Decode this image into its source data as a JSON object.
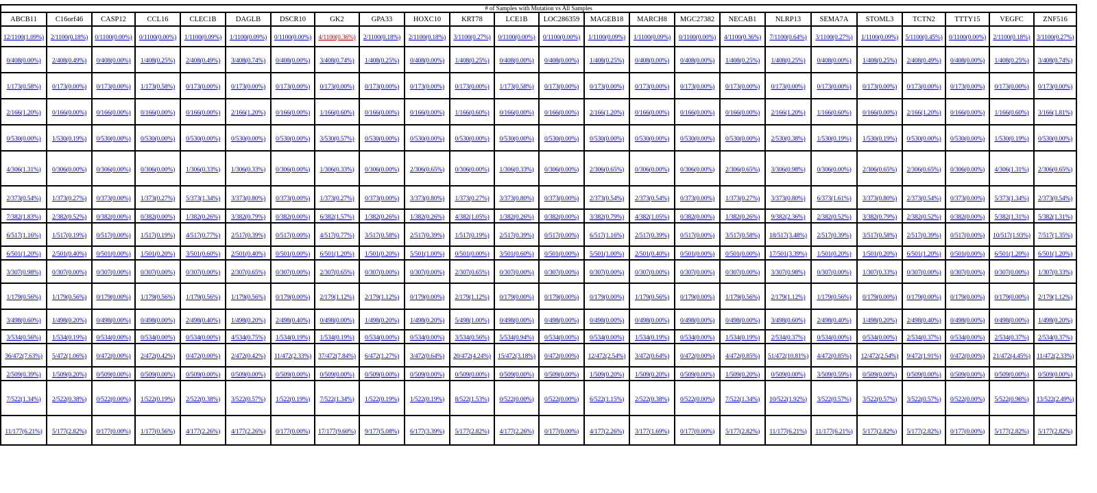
{
  "table": {
    "title": "# of Samples with Mutation vs All Samples",
    "columns": [
      "ABCB11",
      "C16orf46",
      "CASP12",
      "CCL16",
      "CLEC1B",
      "DAGLB",
      "DSCR10",
      "GK2",
      "GPA33",
      "HOXC10",
      "KRT78",
      "LCE1B",
      "LOC286359",
      "MAGEB18",
      "MARCH8",
      "MGC27382",
      "NECAB1",
      "NLRP13",
      "SEMA7A",
      "STOML3",
      "TCTN2",
      "TTTY15",
      "VEGFC",
      "ZNF516"
    ],
    "rows": [
      [
        "12/1100(1.09%)",
        "2/1100(0.18%)",
        "0/1100(0.00%)",
        "0/1100(0.00%)",
        "1/1100(0.09%)",
        "1/1100(0.09%)",
        "0/1100(0.00%)",
        "4/1100(0.36%)",
        "2/1100(0.18%)",
        "2/1100(0.18%)",
        "3/1100(0.27%)",
        "0/1100(0.00%)",
        "0/1100(0.00%)",
        "1/1100(0.09%)",
        "1/1100(0.09%)",
        "0/1100(0.00%)",
        "4/1100(0.36%)",
        "7/1100(0.64%)",
        "3/1100(0.27%)",
        "1/1100(0.09%)",
        "5/1100(0.45%)",
        "0/1100(0.00%)",
        "2/1100(0.18%)",
        "3/1100(0.27%)"
      ],
      [
        "0/408(0.00%)",
        "2/408(0.49%)",
        "0/408(0.00%)",
        "1/408(0.25%)",
        "2/408(0.49%)",
        "3/408(0.74%)",
        "0/408(0.00%)",
        "3/408(0.74%)",
        "1/408(0.25%)",
        "0/408(0.00%)",
        "1/408(0.25%)",
        "0/408(0.00%)",
        "0/408(0.00%)",
        "1/408(0.25%)",
        "0/408(0.00%)",
        "0/408(0.00%)",
        "1/408(0.25%)",
        "1/408(0.25%)",
        "0/408(0.00%)",
        "1/408(0.25%)",
        "2/408(0.49%)",
        "0/408(0.00%)",
        "1/408(0.25%)",
        "3/408(0.74%)"
      ],
      [
        "1/173(0.58%)",
        "0/173(0.00%)",
        "0/173(0.00%)",
        "1/173(0.58%)",
        "0/173(0.00%)",
        "0/173(0.00%)",
        "0/173(0.00%)",
        "0/173(0.00%)",
        "0/173(0.00%)",
        "0/173(0.00%)",
        "0/173(0.00%)",
        "1/173(0.58%)",
        "0/173(0.00%)",
        "0/173(0.00%)",
        "0/173(0.00%)",
        "0/173(0.00%)",
        "0/173(0.00%)",
        "0/173(0.00%)",
        "0/173(0.00%)",
        "0/173(0.00%)",
        "0/173(0.00%)",
        "0/173(0.00%)",
        "0/173(0.00%)",
        "0/173(0.00%)"
      ],
      [
        "2/166(1.20%)",
        "0/166(0.00%)",
        "0/166(0.00%)",
        "0/166(0.00%)",
        "0/166(0.00%)",
        "2/166(1.20%)",
        "0/166(0.00%)",
        "1/166(0.60%)",
        "0/166(0.00%)",
        "0/166(0.00%)",
        "1/166(0.60%)",
        "0/166(0.00%)",
        "0/166(0.00%)",
        "2/166(1.20%)",
        "0/166(0.00%)",
        "0/166(0.00%)",
        "0/166(0.00%)",
        "2/166(1.20%)",
        "1/166(0.60%)",
        "0/166(0.00%)",
        "2/166(1.20%)",
        "0/166(0.00%)",
        "1/166(0.60%)",
        "3/166(1.81%)"
      ],
      [
        "0/530(0.00%)",
        "1/530(0.19%)",
        "0/530(0.00%)",
        "0/530(0.00%)",
        "0/530(0.00%)",
        "0/530(0.00%)",
        "0/530(0.00%)",
        "3/530(0.57%)",
        "0/530(0.00%)",
        "0/530(0.00%)",
        "0/530(0.00%)",
        "0/530(0.00%)",
        "0/530(0.00%)",
        "0/530(0.00%)",
        "0/530(0.00%)",
        "0/530(0.00%)",
        "0/530(0.00%)",
        "2/530(0.38%)",
        "1/530(0.19%)",
        "1/530(0.19%)",
        "0/530(0.00%)",
        "0/530(0.00%)",
        "1/530(0.19%)",
        "0/530(0.00%)"
      ],
      [
        "4/306(1.31%)",
        "0/306(0.00%)",
        "0/306(0.00%)",
        "0/306(0.00%)",
        "1/306(0.33%)",
        "1/306(0.33%)",
        "0/306(0.00%)",
        "1/306(0.33%)",
        "0/306(0.00%)",
        "2/306(0.65%)",
        "0/306(0.00%)",
        "1/306(0.33%)",
        "0/306(0.00%)",
        "2/306(0.65%)",
        "0/306(0.00%)",
        "0/306(0.00%)",
        "2/306(0.65%)",
        "3/306(0.98%)",
        "0/306(0.00%)",
        "2/306(0.65%)",
        "2/306(0.65%)",
        "0/306(0.00%)",
        "4/306(1.31%)",
        "2/306(0.65%)"
      ],
      [
        "2/373(0.54%)",
        "1/373(0.27%)",
        "0/373(0.00%)",
        "1/373(0.27%)",
        "5/373(1.34%)",
        "3/373(0.80%)",
        "0/373(0.00%)",
        "1/373(0.27%)",
        "0/373(0.00%)",
        "3/373(0.80%)",
        "1/373(0.27%)",
        "3/373(0.80%)",
        "0/373(0.00%)",
        "2/373(0.54%)",
        "2/373(0.54%)",
        "0/373(0.00%)",
        "1/373(0.27%)",
        "3/373(0.80%)",
        "6/373(1.61%)",
        "3/373(0.80%)",
        "2/373(0.54%)",
        "0/373(0.00%)",
        "5/373(1.34%)",
        "2/373(0.54%)"
      ],
      [
        "7/382(1.83%)",
        "2/382(0.52%)",
        "0/382(0.00%)",
        "0/382(0.00%)",
        "1/382(0.26%)",
        "3/382(0.79%)",
        "0/382(0.00%)",
        "6/382(1.57%)",
        "1/382(0.26%)",
        "1/382(0.26%)",
        "4/382(1.05%)",
        "1/382(0.26%)",
        "0/382(0.00%)",
        "3/382(0.79%)",
        "4/382(1.05%)",
        "0/382(0.00%)",
        "1/382(0.26%)",
        "9/382(2.36%)",
        "2/382(0.52%)",
        "3/382(0.79%)",
        "2/382(0.52%)",
        "0/382(0.00%)",
        "5/382(1.31%)",
        "5/382(1.31%)"
      ],
      [
        "6/517(1.16%)",
        "1/517(0.19%)",
        "0/517(0.00%)",
        "1/517(0.19%)",
        "4/517(0.77%)",
        "2/517(0.39%)",
        "0/517(0.00%)",
        "4/517(0.77%)",
        "3/517(0.58%)",
        "2/517(0.39%)",
        "1/517(0.19%)",
        "2/517(0.39%)",
        "0/517(0.00%)",
        "6/517(1.16%)",
        "2/517(0.39%)",
        "0/517(0.00%)",
        "3/517(0.58%)",
        "18/517(3.48%)",
        "2/517(0.39%)",
        "3/517(0.58%)",
        "2/517(0.39%)",
        "0/517(0.00%)",
        "10/517(1.93%)",
        "7/517(1.35%)"
      ],
      [
        "6/501(1.20%)",
        "2/501(0.40%)",
        "0/501(0.00%)",
        "1/501(0.20%)",
        "3/501(0.60%)",
        "2/501(0.40%)",
        "0/501(0.00%)",
        "6/501(1.20%)",
        "1/501(0.20%)",
        "5/501(1.00%)",
        "0/501(0.00%)",
        "3/501(0.60%)",
        "0/501(0.00%)",
        "5/501(1.00%)",
        "2/501(0.40%)",
        "0/501(0.00%)",
        "0/501(0.00%)",
        "17/501(3.39%)",
        "1/501(0.20%)",
        "1/501(0.20%)",
        "6/501(1.20%)",
        "0/501(0.00%)",
        "6/501(1.20%)",
        "6/501(1.20%)"
      ],
      [
        "3/307(0.98%)",
        "0/307(0.00%)",
        "0/307(0.00%)",
        "0/307(0.00%)",
        "0/307(0.00%)",
        "2/307(0.65%)",
        "0/307(0.00%)",
        "2/307(0.65%)",
        "0/307(0.00%)",
        "0/307(0.00%)",
        "2/307(0.65%)",
        "0/307(0.00%)",
        "0/307(0.00%)",
        "0/307(0.00%)",
        "0/307(0.00%)",
        "0/307(0.00%)",
        "0/307(0.00%)",
        "3/307(0.98%)",
        "0/307(0.00%)",
        "1/307(0.33%)",
        "0/307(0.00%)",
        "0/307(0.00%)",
        "0/307(0.00%)",
        "1/307(0.33%)"
      ],
      [
        "1/179(0.56%)",
        "1/179(0.56%)",
        "0/179(0.00%)",
        "1/179(0.56%)",
        "1/179(0.56%)",
        "1/179(0.56%)",
        "0/179(0.00%)",
        "2/179(1.12%)",
        "2/179(1.12%)",
        "0/179(0.00%)",
        "2/179(1.12%)",
        "0/179(0.00%)",
        "0/179(0.00%)",
        "0/179(0.00%)",
        "1/179(0.56%)",
        "0/179(0.00%)",
        "1/179(0.56%)",
        "2/179(1.12%)",
        "1/179(0.56%)",
        "0/179(0.00%)",
        "0/179(0.00%)",
        "0/179(0.00%)",
        "0/179(0.00%)",
        "2/179(1.12%)"
      ],
      [
        "3/498(0.60%)",
        "1/498(0.20%)",
        "0/498(0.00%)",
        "0/498(0.00%)",
        "2/498(0.40%)",
        "1/498(0.20%)",
        "2/498(0.40%)",
        "0/498(0.00%)",
        "1/498(0.20%)",
        "1/498(0.20%)",
        "5/498(1.00%)",
        "0/498(0.00%)",
        "0/498(0.00%)",
        "0/498(0.00%)",
        "0/498(0.00%)",
        "0/498(0.00%)",
        "0/498(0.00%)",
        "3/498(0.60%)",
        "2/498(0.40%)",
        "1/498(0.20%)",
        "2/498(0.40%)",
        "0/498(0.00%)",
        "0/498(0.00%)",
        "1/498(0.20%)"
      ],
      [
        "3/534(0.56%)",
        "1/534(0.19%)",
        "0/534(0.00%)",
        "0/534(0.00%)",
        "0/534(0.00%)",
        "4/534(0.75%)",
        "1/534(0.19%)",
        "1/534(0.19%)",
        "0/534(0.00%)",
        "0/534(0.00%)",
        "3/534(0.56%)",
        "5/534(0.94%)",
        "0/534(0.00%)",
        "0/534(0.00%)",
        "1/534(0.19%)",
        "0/534(0.00%)",
        "1/534(0.19%)",
        "2/534(0.37%)",
        "0/534(0.00%)",
        "0/534(0.00%)",
        "2/534(0.37%)",
        "0/534(0.00%)",
        "2/534(0.37%)",
        "2/534(0.37%)"
      ],
      [
        "36/472(7.63%)",
        "5/472(1.06%)",
        "0/472(0.00%)",
        "2/472(0.42%)",
        "0/472(0.00%)",
        "2/472(0.42%)",
        "11/472(2.33%)",
        "37/472(7.84%)",
        "6/472(1.27%)",
        "3/472(0.64%)",
        "20/472(4.24%)",
        "15/472(3.18%)",
        "0/472(0.00%)",
        "12/472(2.54%)",
        "3/472(0.64%)",
        "0/472(0.00%)",
        "4/472(0.85%)",
        "51/472(10.81%)",
        "4/472(0.85%)",
        "12/472(2.54%)",
        "9/472(1.91%)",
        "0/472(0.00%)",
        "21/472(4.45%)",
        "11/472(2.33%)"
      ],
      [
        "2/509(0.39%)",
        "1/509(0.20%)",
        "0/509(0.00%)",
        "0/509(0.00%)",
        "0/509(0.00%)",
        "0/509(0.00%)",
        "0/509(0.00%)",
        "0/509(0.00%)",
        "0/509(0.00%)",
        "0/509(0.00%)",
        "0/509(0.00%)",
        "0/509(0.00%)",
        "0/509(0.00%)",
        "1/509(0.20%)",
        "1/509(0.20%)",
        "0/509(0.00%)",
        "1/509(0.20%)",
        "0/509(0.00%)",
        "3/509(0.59%)",
        "0/509(0.00%)",
        "0/509(0.00%)",
        "0/509(0.00%)",
        "0/509(0.00%)",
        "0/509(0.00%)"
      ],
      [
        "7/522(1.34%)",
        "2/522(0.38%)",
        "0/522(0.00%)",
        "1/522(0.19%)",
        "2/522(0.38%)",
        "3/522(0.57%)",
        "1/522(0.19%)",
        "7/522(1.34%)",
        "1/522(0.19%)",
        "1/522(0.19%)",
        "8/522(1.53%)",
        "0/522(0.00%)",
        "0/522(0.00%)",
        "6/522(1.15%)",
        "2/522(0.38%)",
        "0/522(0.00%)",
        "7/522(1.34%)",
        "10/522(1.92%)",
        "3/522(0.57%)",
        "3/522(0.57%)",
        "3/522(0.57%)",
        "0/522(0.00%)",
        "5/522(0.96%)",
        "13/522(2.49%)"
      ],
      [
        "11/177(6.21%)",
        "5/177(2.82%)",
        "0/177(0.00%)",
        "1/177(0.56%)",
        "4/177(2.26%)",
        "4/177(2.26%)",
        "0/177(0.00%)",
        "17/177(9.60%)",
        "9/177(5.08%)",
        "6/177(3.39%)",
        "5/177(2.82%)",
        "4/177(2.26%)",
        "0/177(0.00%)",
        "4/177(2.26%)",
        "3/177(1.69%)",
        "0/177(0.00%)",
        "5/177(2.82%)",
        "11/177(6.21%)",
        "11/177(6.21%)",
        "5/177(2.82%)",
        "5/177(2.82%)",
        "0/177(0.00%)",
        "5/177(2.82%)",
        "5/177(2.82%)"
      ]
    ],
    "colors": {
      "link": "#0000EE",
      "highlight": "#CC0000"
    },
    "highlighted": [
      [
        0,
        7
      ]
    ]
  }
}
